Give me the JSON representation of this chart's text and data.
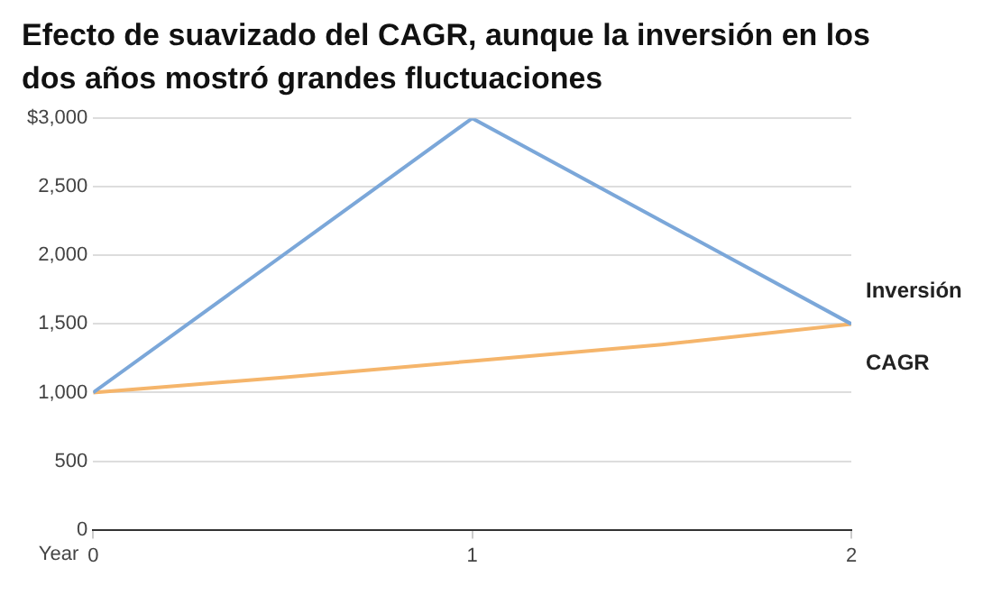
{
  "chart_data": {
    "type": "line",
    "title": "Efecto de suavizado del CAGR, aunque la inversión en los dos años mostró grandes fluctuaciones",
    "xlabel": "Year",
    "series": [
      {
        "name": "Inversión",
        "color": "#7ba7d9",
        "x": [
          0,
          1,
          2
        ],
        "values": [
          1000,
          3000,
          1500
        ]
      },
      {
        "name": "CAGR",
        "color": "#f5b56b",
        "x": [
          0,
          0.5,
          1,
          1.5,
          2
        ],
        "values": [
          1000,
          1110,
          1230,
          1350,
          1500
        ]
      }
    ],
    "xlim": [
      0,
      2
    ],
    "xticks": [
      0,
      1,
      2
    ],
    "ylim": [
      0,
      3000
    ],
    "yticks": [
      0,
      500,
      {
        "value": 1000,
        "label": "1,000"
      },
      {
        "value": 1500,
        "label": "1,500"
      },
      {
        "value": 2000,
        "label": "2,000"
      },
      {
        "value": 2500,
        "label": "2,500"
      },
      {
        "value": 3000,
        "label": "$3,000"
      }
    ],
    "grid": "y",
    "legend": false,
    "marker": "none",
    "line_style": "solid"
  }
}
